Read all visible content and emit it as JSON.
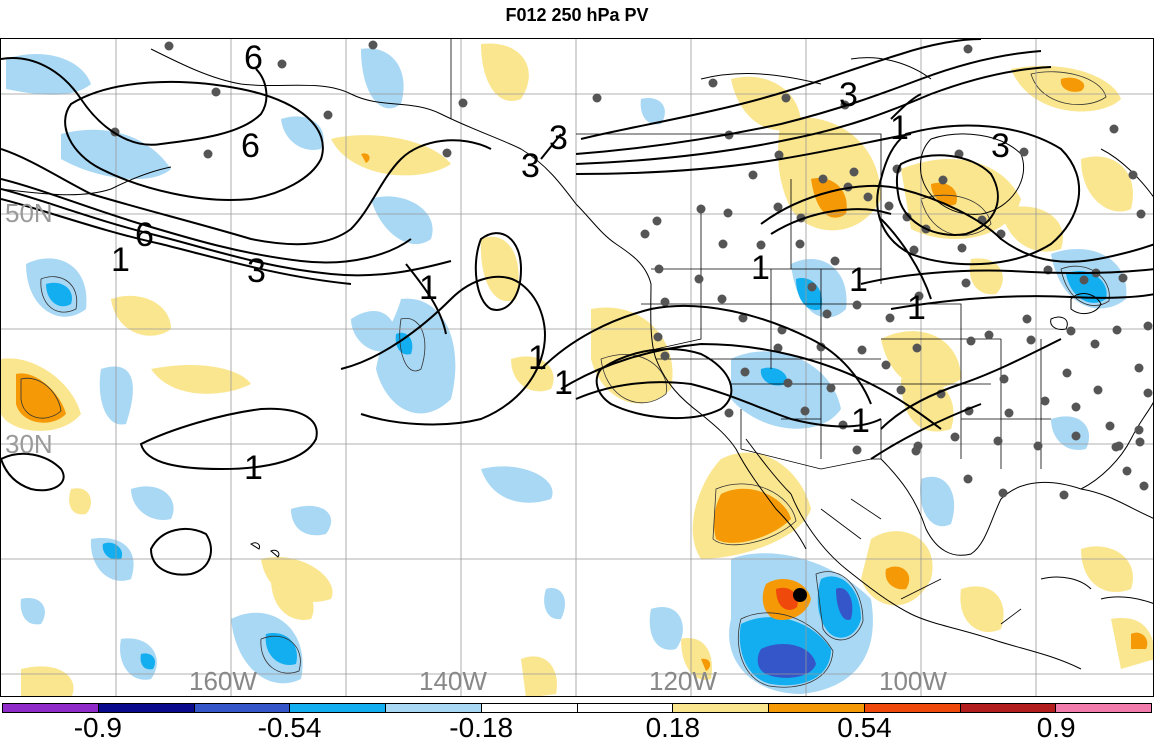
{
  "title": "F012 250 hPa PV",
  "lat_labels": [
    "50N",
    "30N"
  ],
  "lon_labels": [
    "160W",
    "140W",
    "120W",
    "100W"
  ],
  "contour_labels": [
    "6",
    "6",
    "6",
    "1",
    "3",
    "3",
    "3",
    "1",
    "1",
    "1",
    "1",
    "3",
    "1",
    "1",
    "3",
    "1",
    "1",
    "1"
  ],
  "colorbar": {
    "colors": [
      "#8e2bc9",
      "#0a0a8c",
      "#3556c8",
      "#12aef0",
      "#a9d8f5",
      "#ffffff",
      "#ffffff",
      "#fbe690",
      "#f59a06",
      "#ef4a0c",
      "#b21d1d",
      "#f27cac"
    ],
    "labels": [
      "-0.9",
      "-0.54",
      "-0.18",
      "0.18",
      "0.54",
      "0.9"
    ]
  },
  "fill_colors": {
    "light_blue": "#a9d8f5",
    "cyan": "#12aef0",
    "blue": "#3556c8",
    "light_yellow": "#fbe690",
    "orange": "#f59a06",
    "red_orange": "#ef4a0c"
  }
}
